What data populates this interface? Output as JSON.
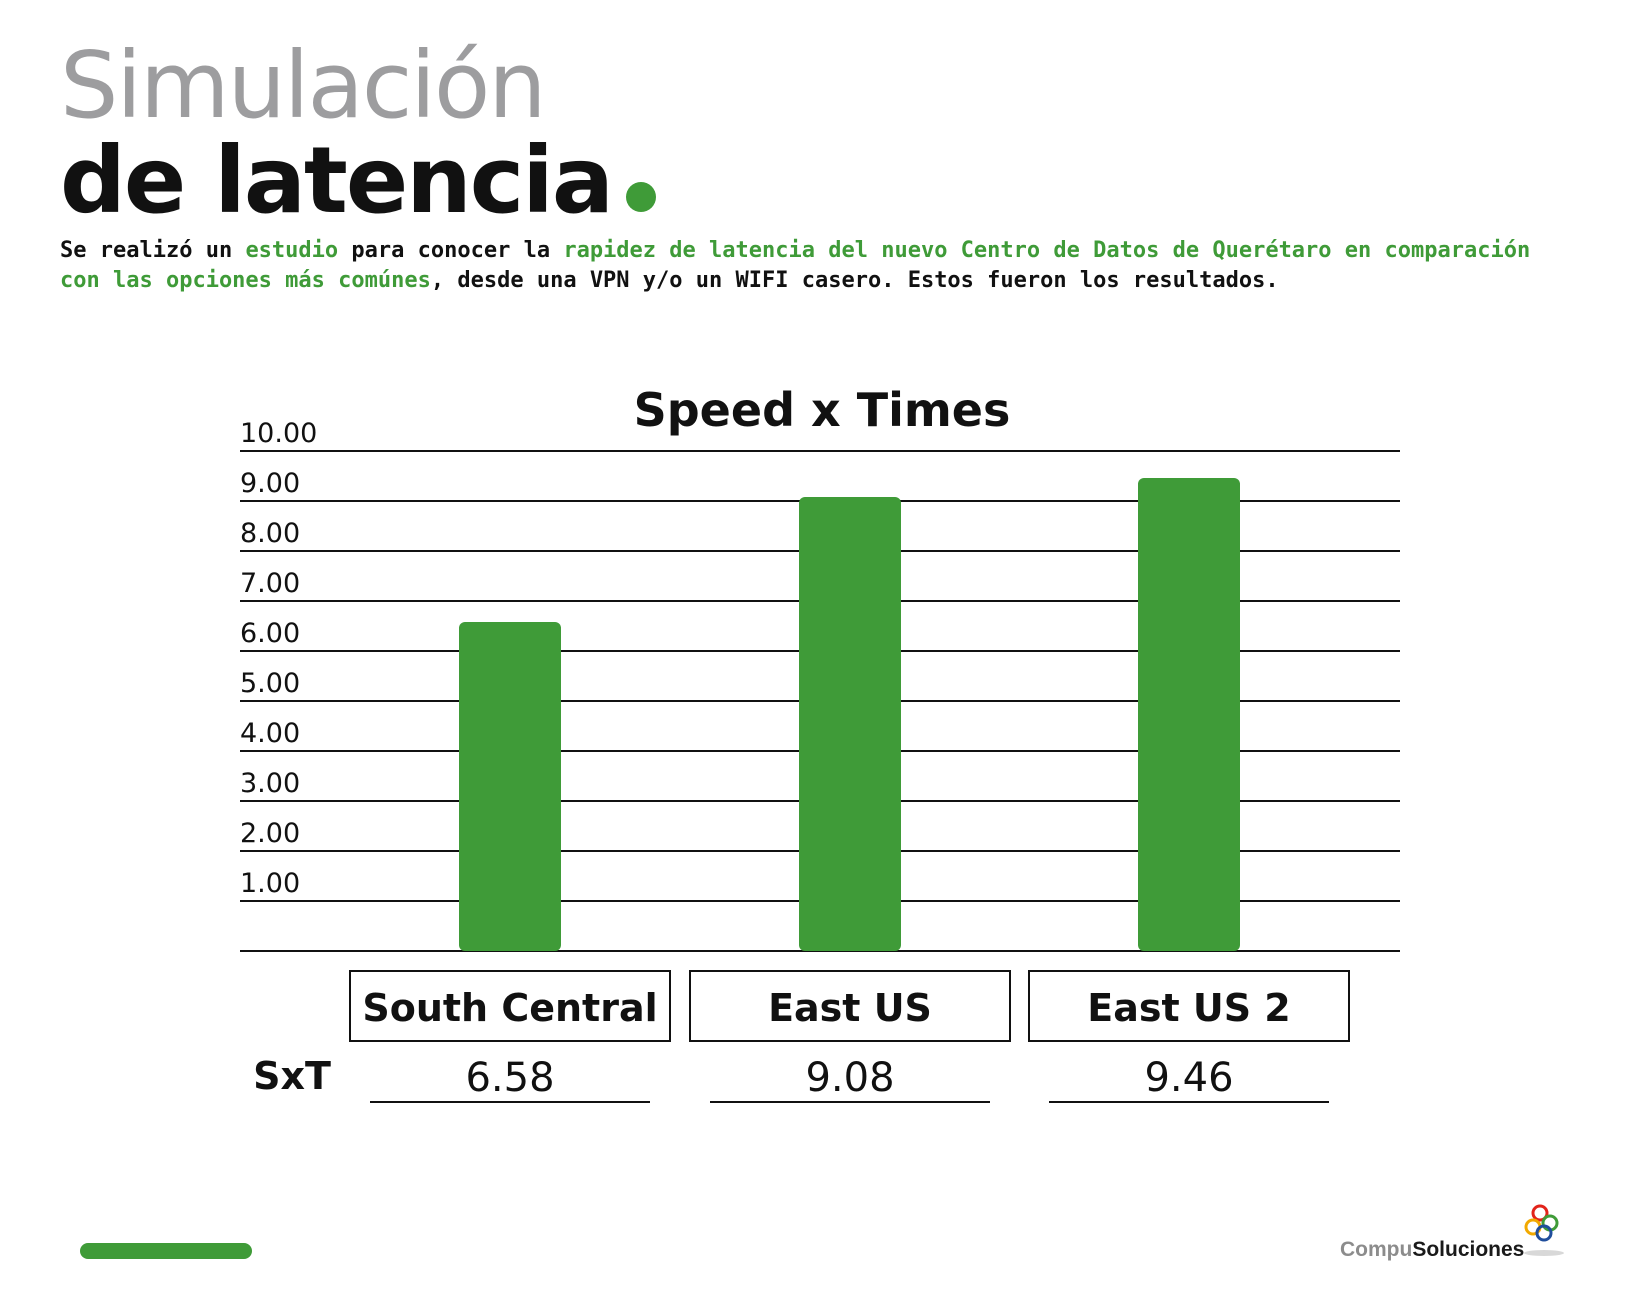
{
  "header": {
    "title_line1": "Simulación",
    "title_line2": "de latencia",
    "intro": [
      {
        "text": "Se realizó un ",
        "highlight": false
      },
      {
        "text": "estudio",
        "highlight": true
      },
      {
        "text": " para conocer la ",
        "highlight": false
      },
      {
        "text": "rapidez de latencia del nuevo Centro de Datos de Querétaro en comparación con las opciones más comúnes",
        "highlight": true
      },
      {
        "text": ", desde una VPN y/o un WIFI casero. Estos fueron los resultados.",
        "highlight": false
      }
    ]
  },
  "colors": {
    "accent": "#3f9b38",
    "title_gray": "#9d9d9f",
    "text": "#111111"
  },
  "chart_data": {
    "type": "bar",
    "title": "Speed x Times",
    "categories": [
      "South Central",
      "East US",
      "East US 2"
    ],
    "values": [
      6.58,
      9.08,
      9.46
    ],
    "value_labels": [
      "6.58",
      "9.08",
      "9.46"
    ],
    "row_label": "SxT",
    "y_ticks": [
      "1.00",
      "2.00",
      "3.00",
      "4.00",
      "5.00",
      "6.00",
      "7.00",
      "8.00",
      "9.00",
      "10.00"
    ],
    "ylim": [
      0,
      10
    ],
    "grid": true,
    "xlabel": "",
    "ylabel": ""
  },
  "footer": {
    "logo_part1": "Compu",
    "logo_part2": "Soluciones",
    "logo_icon": "compusoluciones-rings-icon"
  }
}
